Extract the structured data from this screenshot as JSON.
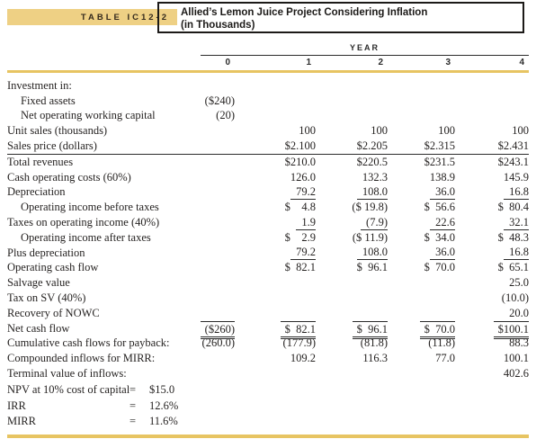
{
  "header": {
    "table_tag": "TABLE IC12-2",
    "title_line1": "Allied’s Lemon Juice Project Considering Inflation",
    "title_line2": "(in Thousands)"
  },
  "colors": {
    "banner_gold": "#eed084",
    "rule_gold": "#e7c462",
    "ink": "#262322"
  },
  "table": {
    "year_label": "YEAR",
    "year_columns": [
      "0",
      "1",
      "2",
      "3",
      "4"
    ],
    "rows": [
      {
        "label": "Investment in:",
        "indent": 0,
        "values": [
          "",
          "",
          "",
          "",
          ""
        ]
      },
      {
        "label": "Fixed assets",
        "indent": 1,
        "values": [
          "($240)",
          "",
          "",
          "",
          ""
        ]
      },
      {
        "label": "Net operating working capital",
        "indent": 1,
        "values": [
          "(20)",
          "",
          "",
          "",
          ""
        ]
      },
      {
        "label": "Unit sales (thousands)",
        "indent": 0,
        "values": [
          "",
          "100",
          "100",
          "100",
          "100"
        ]
      },
      {
        "label": "Sales price (dollars)",
        "indent": 0,
        "rule": true,
        "values": [
          "",
          "$2.100",
          "$2.205",
          "$2.315",
          "$2.431"
        ]
      },
      {
        "label": "Total revenues",
        "indent": 0,
        "values": [
          "",
          "$210.0",
          "$220.5",
          "$231.5",
          "$243.1"
        ]
      },
      {
        "label": "Cash operating costs (60%)",
        "indent": 0,
        "values": [
          "",
          "126.0",
          "132.3",
          "138.9",
          "145.9"
        ]
      },
      {
        "label": "Depreciation",
        "indent": 0,
        "u": true,
        "values": [
          "",
          "79.2",
          "108.0",
          "36.0",
          "16.8"
        ]
      },
      {
        "label": "Operating income before taxes",
        "indent": 1,
        "values": [
          "",
          "$    4.8",
          "($ 19.8)",
          "$  56.6",
          "$  80.4"
        ]
      },
      {
        "label": "Taxes on operating income (40%)",
        "indent": 0,
        "u": true,
        "values": [
          "",
          "1.9",
          "(7.9)",
          "22.6",
          "32.1"
        ]
      },
      {
        "label": "Operating income after taxes",
        "indent": 1,
        "values": [
          "",
          "$    2.9",
          "($ 11.9)",
          "$  34.0",
          "$  48.3"
        ]
      },
      {
        "label": "Plus depreciation",
        "indent": 0,
        "u": true,
        "values": [
          "",
          "79.2",
          "108.0",
          "36.0",
          "16.8"
        ]
      },
      {
        "label": "Operating cash flow",
        "indent": 0,
        "values": [
          "",
          "$  82.1",
          "$  96.1",
          "$  70.0",
          "$  65.1"
        ]
      },
      {
        "label": "Salvage value",
        "indent": 0,
        "values": [
          "",
          "",
          "",
          "",
          "25.0"
        ]
      },
      {
        "label": "Tax on SV (40%)",
        "indent": 0,
        "values": [
          "",
          "",
          "",
          "",
          "(10.0)"
        ]
      },
      {
        "label": "Recovery of NOWC",
        "indent": 0,
        "values": [
          "",
          "",
          "",
          "",
          "20.0"
        ]
      },
      {
        "label": "Net cash flow",
        "indent": 0,
        "net": true,
        "values": [
          "($260)",
          "$  82.1",
          "$  96.1",
          "$  70.0",
          "$100.1"
        ]
      },
      {
        "label": "Cumulative cash flows for payback:",
        "indent": 0,
        "values": [
          "(260.0)",
          "(177.9)",
          "(81.8)",
          "(11.8)",
          "88.3"
        ]
      },
      {
        "label": "Compounded inflows for MIRR:",
        "indent": 0,
        "values": [
          "",
          "109.2",
          "116.3",
          "77.0",
          "100.1"
        ]
      },
      {
        "label": "Terminal value of inflows:",
        "indent": 0,
        "values": [
          "",
          "",
          "",
          "",
          "402.6"
        ]
      }
    ]
  },
  "summary": [
    {
      "label": "NPV at 10% cost of capital",
      "eq": "=",
      "value": "$15.0"
    },
    {
      "label": "IRR",
      "eq": "=",
      "value": "12.6%"
    },
    {
      "label": "MIRR",
      "eq": "=",
      "value": "11.6%"
    }
  ]
}
